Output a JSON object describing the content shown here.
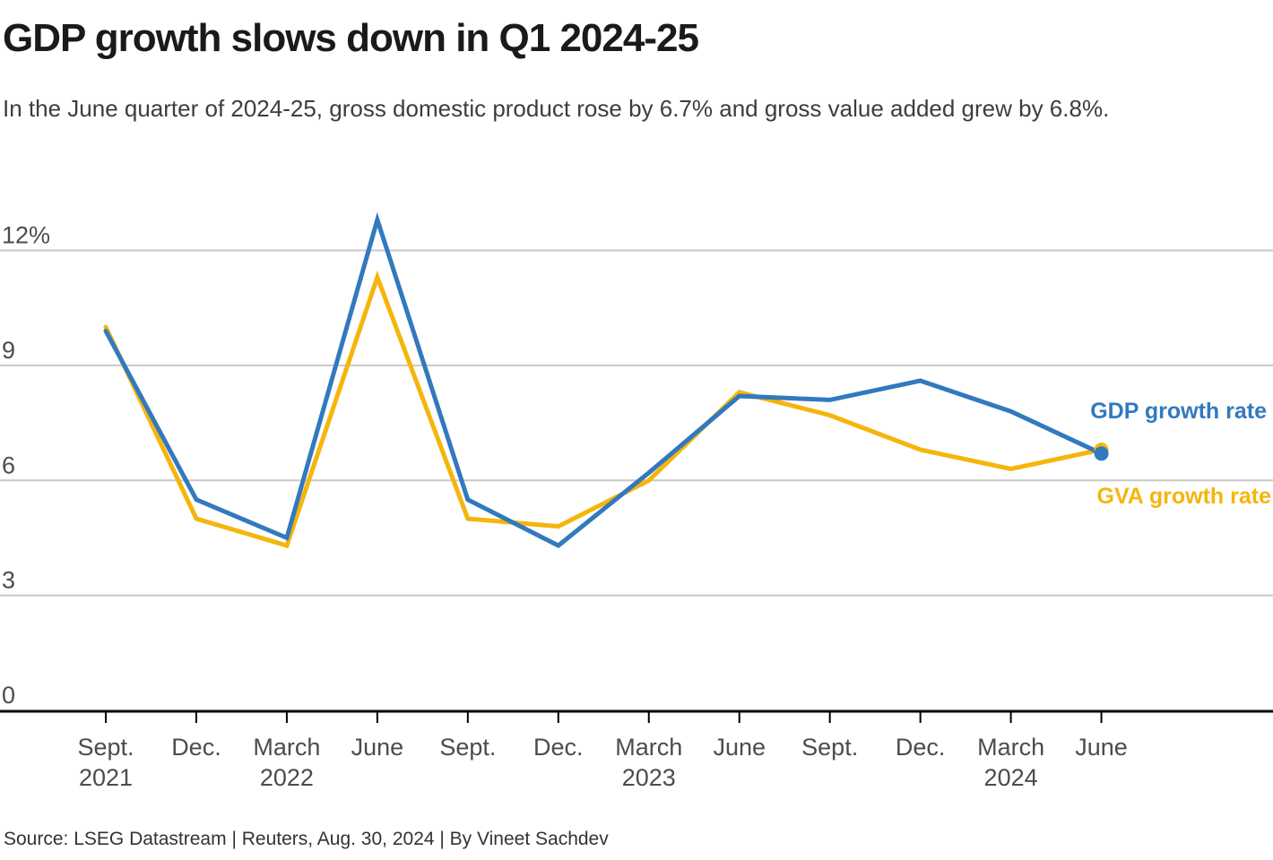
{
  "header": {
    "title": "GDP growth slows down in Q1 2024-25",
    "subtitle": "In the June quarter of 2024-25, gross domestic product rose by 6.7% and gross value added grew by 6.8%."
  },
  "footer": {
    "source": "Source: LSEG Datastream | Reuters, Aug. 30, 2024 | By Vineet Sachdev"
  },
  "chart_data": {
    "type": "line",
    "unit": "%",
    "categories": [
      "Sept. 2021",
      "Dec. 2021",
      "March 2022",
      "June 2022",
      "Sept. 2022",
      "Dec. 2022",
      "March 2023",
      "June 2023",
      "Sept. 2023",
      "Dec. 2023",
      "March 2024",
      "June 2024"
    ],
    "x_month_labels": [
      "Sept.",
      "Dec.",
      "March",
      "June",
      "Sept.",
      "Dec.",
      "March",
      "June",
      "Sept.",
      "Dec.",
      "March",
      "June"
    ],
    "x_year_labels": [
      {
        "index": 0,
        "label": "2021"
      },
      {
        "index": 2,
        "label": "2022"
      },
      {
        "index": 6,
        "label": "2023"
      },
      {
        "index": 10,
        "label": "2024"
      }
    ],
    "yticks": [
      {
        "value": 12,
        "label": "12%"
      },
      {
        "value": 9,
        "label": "9"
      },
      {
        "value": 6,
        "label": "6"
      },
      {
        "value": 3,
        "label": "3"
      },
      {
        "value": 0,
        "label": "0"
      }
    ],
    "ylim": [
      0,
      13.2
    ],
    "grid": "horizontal",
    "legend_position": "right-inline",
    "series": [
      {
        "id": "gdp",
        "name": "GDP growth rate",
        "color": "#3279BE",
        "end_dot": true,
        "values": [
          9.9,
          5.5,
          4.5,
          12.8,
          5.5,
          4.3,
          6.2,
          8.2,
          8.1,
          8.6,
          7.8,
          6.7
        ]
      },
      {
        "id": "gva",
        "name": "GVA growth rate",
        "color": "#F5B50C",
        "end_dot": true,
        "values": [
          10.0,
          5.0,
          4.3,
          11.3,
          5.0,
          4.8,
          6.0,
          8.3,
          7.7,
          6.8,
          6.3,
          6.8
        ]
      }
    ]
  },
  "colors": {
    "gridline": "#C9C9C9",
    "axis": "#000000",
    "axis_label": "#4C4C4C"
  }
}
